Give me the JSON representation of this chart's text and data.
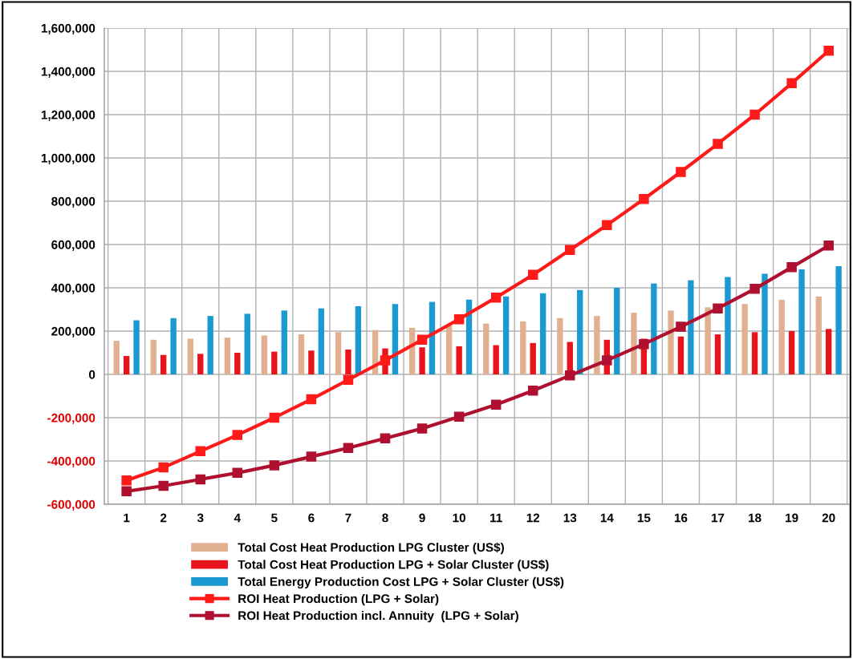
{
  "chart_data": {
    "type": "bar",
    "categories": [
      "1",
      "2",
      "3",
      "4",
      "5",
      "6",
      "7",
      "8",
      "9",
      "10",
      "11",
      "12",
      "13",
      "14",
      "15",
      "16",
      "17",
      "18",
      "19",
      "20"
    ],
    "series": [
      {
        "name": "Total Cost Heat Production LPG Cluster (US$)",
        "color": "#e0b090",
        "values": [
          155000,
          160000,
          165000,
          170000,
          180000,
          185000,
          195000,
          205000,
          215000,
          225000,
          235000,
          245000,
          260000,
          270000,
          285000,
          295000,
          310000,
          325000,
          345000,
          360000
        ]
      },
      {
        "name": "Total Cost Heat Production LPG + Solar Cluster (US$)",
        "color": "#e8141c",
        "values": [
          85000,
          90000,
          95000,
          100000,
          105000,
          110000,
          115000,
          120000,
          125000,
          130000,
          135000,
          145000,
          150000,
          160000,
          165000,
          175000,
          185000,
          195000,
          200000,
          210000
        ]
      },
      {
        "name": "Total Energy Production Cost LPG + Solar Cluster (US$)",
        "color": "#1a9ad0",
        "values": [
          250000,
          260000,
          270000,
          280000,
          295000,
          305000,
          315000,
          325000,
          335000,
          345000,
          360000,
          375000,
          390000,
          400000,
          420000,
          435000,
          450000,
          465000,
          485000,
          500000
        ]
      },
      {
        "name": "ROI Heat Production (LPG + Solar)",
        "type": "line",
        "color": "#ff1a1a",
        "values": [
          -490000,
          -430000,
          -355000,
          -280000,
          -200000,
          -115000,
          -25000,
          65000,
          160000,
          255000,
          355000,
          460000,
          575000,
          690000,
          810000,
          935000,
          1065000,
          1200000,
          1345000,
          1495000
        ]
      },
      {
        "name": "ROI Heat Production incl. Annuity  (LPG + Solar)",
        "type": "line",
        "color": "#b01030",
        "values": [
          -540000,
          -515000,
          -485000,
          -455000,
          -420000,
          -380000,
          -340000,
          -295000,
          -250000,
          -195000,
          -140000,
          -75000,
          -5000,
          65000,
          140000,
          220000,
          305000,
          395000,
          495000,
          595000
        ]
      }
    ],
    "ylim": [
      -600000,
      1600000
    ],
    "yticks": [
      {
        "value": -600000,
        "label": "-600,000"
      },
      {
        "value": -400000,
        "label": "-400,000"
      },
      {
        "value": -200000,
        "label": "-200,000"
      },
      0,
      {
        "value": 200000,
        "label": "200,000"
      },
      {
        "value": 400000,
        "label": "400,000"
      },
      {
        "value": 600000,
        "label": "600,000"
      },
      {
        "value": 800000,
        "label": "800,000"
      },
      {
        "value": 1000000,
        "label": "1,000,000"
      },
      {
        "value": 1200000,
        "label": "1,200,000"
      },
      {
        "value": 1400000,
        "label": "1,400,000"
      },
      {
        "value": 1600000,
        "label": "1,600,000"
      }
    ],
    "grid": true,
    "legend": "bottom",
    "marker": "square",
    "line_style": "solid"
  }
}
